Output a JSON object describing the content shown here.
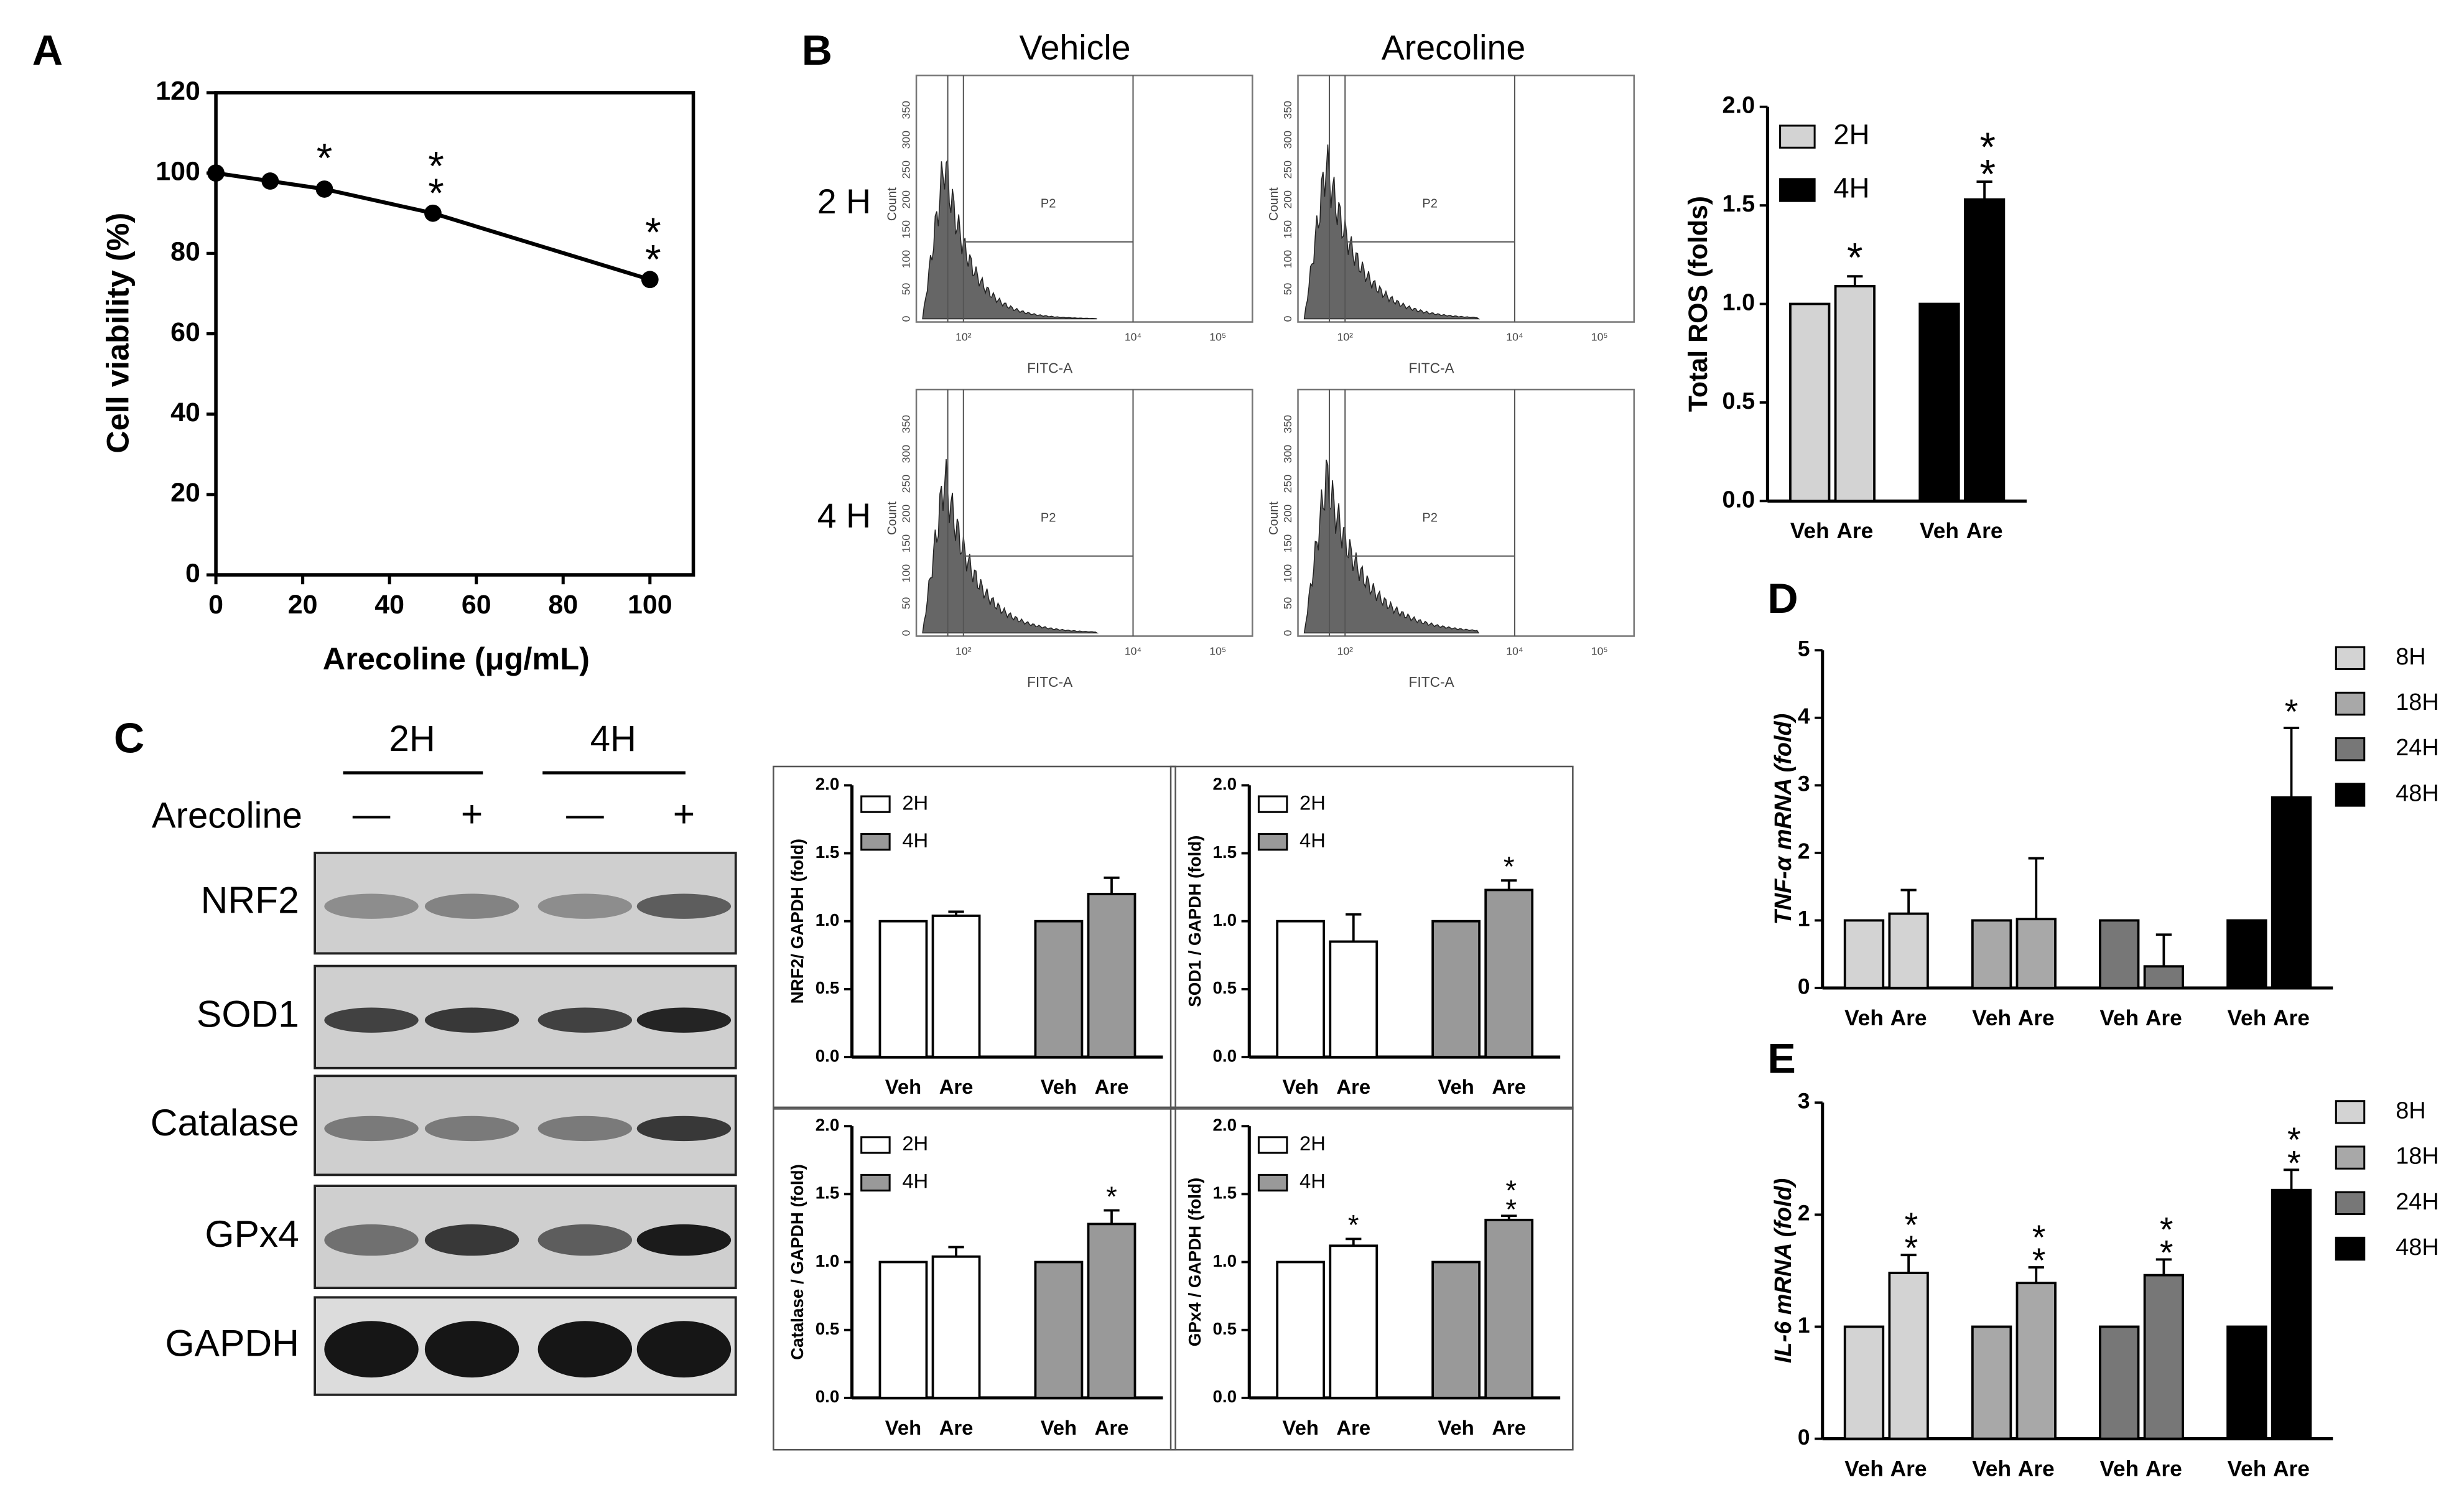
{
  "panels": [
    "A",
    "B",
    "C",
    "D",
    "E"
  ],
  "flow_cytometry": {
    "columns": [
      "Vehicle",
      "Arecoline"
    ],
    "rows": [
      "2 H",
      "4 H"
    ],
    "gate": "P2",
    "x_label": "FITC-A",
    "y_label": "Count",
    "x_ticks": [
      "10²",
      "10⁴",
      "10⁵"
    ],
    "y_ticks": [
      "0",
      "50",
      "100",
      "150",
      "200",
      "250",
      "300",
      "350"
    ]
  },
  "western_blot": {
    "groups": [
      "2H",
      "4H"
    ],
    "treatment": "Arecoline",
    "lanes": [
      "—",
      "+",
      "—",
      "+"
    ],
    "proteins": [
      "NRF2",
      "SOD1",
      "Catalase",
      "GPx4",
      "GAPDH"
    ]
  },
  "chart_data": [
    {
      "type": "line",
      "x_label": "Arecoline (μg/mL)",
      "y_label": "Cell viability (%)",
      "x": [
        0,
        12.5,
        25,
        50,
        100
      ],
      "values": [
        100,
        98,
        96,
        90,
        73.5
      ],
      "significance": [
        null,
        null,
        "*",
        "**",
        "**"
      ],
      "color": "#000000",
      "xlim": [
        0,
        110
      ],
      "xticks": [
        0,
        20,
        40,
        60,
        80,
        100
      ],
      "ylim": [
        0,
        120
      ],
      "yticks": [
        0,
        20,
        40,
        60,
        80,
        100,
        120
      ]
    },
    {
      "type": "bar",
      "y_label": "Total ROS (folds)",
      "categories": [
        "Veh",
        "Are"
      ],
      "series": [
        {
          "name": "2H",
          "color": "#d3d3d3",
          "values": [
            1.0,
            1.09
          ],
          "errors": [
            null,
            0.05
          ],
          "significance": [
            null,
            "*"
          ]
        },
        {
          "name": "4H",
          "color": "#000000",
          "values": [
            1.0,
            1.53
          ],
          "errors": [
            null,
            0.09
          ],
          "significance": [
            null,
            "**"
          ]
        }
      ],
      "ylim": [
        0,
        2
      ],
      "yticks": [
        {
          "value": 0,
          "label": "0.0"
        },
        0.5,
        {
          "value": 1,
          "label": "1.0"
        },
        1.5,
        {
          "value": 2,
          "label": "2.0"
        }
      ]
    },
    {
      "type": "bar",
      "y_label": "NRF2/ GAPDH (fold)",
      "categories": [
        "Veh",
        "Are"
      ],
      "series": [
        {
          "name": "2H",
          "color": "#ffffff",
          "values": [
            1.0,
            1.04
          ],
          "errors": [
            null,
            0.03
          ],
          "significance": [
            null,
            null
          ]
        },
        {
          "name": "4H",
          "color": "#999999",
          "values": [
            1.0,
            1.2
          ],
          "errors": [
            null,
            0.12
          ],
          "significance": [
            null,
            null
          ]
        }
      ],
      "ylim": [
        0,
        2
      ],
      "yticks": [
        {
          "value": 0,
          "label": "0.0"
        },
        0.5,
        {
          "value": 1,
          "label": "1.0"
        },
        1.5,
        {
          "value": 2,
          "label": "2.0"
        }
      ]
    },
    {
      "type": "bar",
      "y_label": "SOD1 / GAPDH (fold)",
      "categories": [
        "Veh",
        "Are"
      ],
      "series": [
        {
          "name": "2H",
          "color": "#ffffff",
          "values": [
            1.0,
            0.85
          ],
          "errors": [
            null,
            0.2
          ],
          "significance": [
            null,
            null
          ]
        },
        {
          "name": "4H",
          "color": "#999999",
          "values": [
            1.0,
            1.23
          ],
          "errors": [
            null,
            0.07
          ],
          "significance": [
            null,
            "*"
          ]
        }
      ],
      "ylim": [
        0,
        2
      ],
      "yticks": [
        {
          "value": 0,
          "label": "0.0"
        },
        0.5,
        {
          "value": 1,
          "label": "1.0"
        },
        1.5,
        {
          "value": 2,
          "label": "2.0"
        }
      ]
    },
    {
      "type": "bar",
      "y_label": "Catalase / GAPDH (fold)",
      "categories": [
        "Veh",
        "Are"
      ],
      "series": [
        {
          "name": "2H",
          "color": "#ffffff",
          "values": [
            1.0,
            1.04
          ],
          "errors": [
            null,
            0.07
          ],
          "significance": [
            null,
            null
          ]
        },
        {
          "name": "4H",
          "color": "#999999",
          "values": [
            1.0,
            1.28
          ],
          "errors": [
            null,
            0.1
          ],
          "significance": [
            null,
            "*"
          ]
        }
      ],
      "ylim": [
        0,
        2
      ],
      "yticks": [
        {
          "value": 0,
          "label": "0.0"
        },
        0.5,
        {
          "value": 1,
          "label": "1.0"
        },
        1.5,
        {
          "value": 2,
          "label": "2.0"
        }
      ]
    },
    {
      "type": "bar",
      "y_label": "GPx4 / GAPDH (fold)",
      "categories": [
        "Veh",
        "Are"
      ],
      "series": [
        {
          "name": "2H",
          "color": "#ffffff",
          "values": [
            1.0,
            1.12
          ],
          "errors": [
            null,
            0.05
          ],
          "significance": [
            null,
            "*"
          ]
        },
        {
          "name": "4H",
          "color": "#999999",
          "values": [
            1.0,
            1.31
          ],
          "errors": [
            null,
            0.03
          ],
          "significance": [
            null,
            "**"
          ]
        }
      ],
      "ylim": [
        0,
        2
      ],
      "yticks": [
        {
          "value": 0,
          "label": "0.0"
        },
        0.5,
        {
          "value": 1,
          "label": "1.0"
        },
        1.5,
        {
          "value": 2,
          "label": "2.0"
        }
      ]
    },
    {
      "type": "bar",
      "y_label": "TNF-α mRNA (fold)",
      "categories": [
        "Veh",
        "Are"
      ],
      "series": [
        {
          "name": "8H",
          "color": "#d3d3d3",
          "values": [
            1,
            1.1
          ],
          "errors": [
            null,
            0.35
          ],
          "significance": [
            null,
            null
          ]
        },
        {
          "name": "18H",
          "color": "#a8a8a8",
          "values": [
            1,
            1.02
          ],
          "errors": [
            null,
            0.9
          ],
          "significance": [
            null,
            null
          ]
        },
        {
          "name": "24H",
          "color": "#777777",
          "values": [
            1,
            0.32
          ],
          "errors": [
            null,
            0.47
          ],
          "significance": [
            null,
            null
          ]
        },
        {
          "name": "48H",
          "color": "#000000",
          "values": [
            1,
            2.82
          ],
          "errors": [
            null,
            1.03
          ],
          "significance": [
            null,
            "*"
          ]
        }
      ],
      "ylim": [
        0,
        5
      ],
      "yticks": [
        0,
        1,
        2,
        3,
        4,
        5
      ]
    },
    {
      "type": "bar",
      "y_label": "IL-6 mRNA (fold)",
      "categories": [
        "Veh",
        "Are"
      ],
      "series": [
        {
          "name": "8H",
          "color": "#d3d3d3",
          "values": [
            1,
            1.48
          ],
          "errors": [
            null,
            0.16
          ],
          "significance": [
            null,
            "**"
          ]
        },
        {
          "name": "18H",
          "color": "#a8a8a8",
          "values": [
            1,
            1.39
          ],
          "errors": [
            null,
            0.14
          ],
          "significance": [
            null,
            "**"
          ]
        },
        {
          "name": "24H",
          "color": "#777777",
          "values": [
            1,
            1.46
          ],
          "errors": [
            null,
            0.14
          ],
          "significance": [
            null,
            "**"
          ]
        },
        {
          "name": "48H",
          "color": "#000000",
          "values": [
            1,
            2.22
          ],
          "errors": [
            null,
            0.18
          ],
          "significance": [
            null,
            "**"
          ]
        }
      ],
      "ylim": [
        0,
        3
      ],
      "yticks": [
        0,
        1,
        2,
        3
      ]
    }
  ]
}
